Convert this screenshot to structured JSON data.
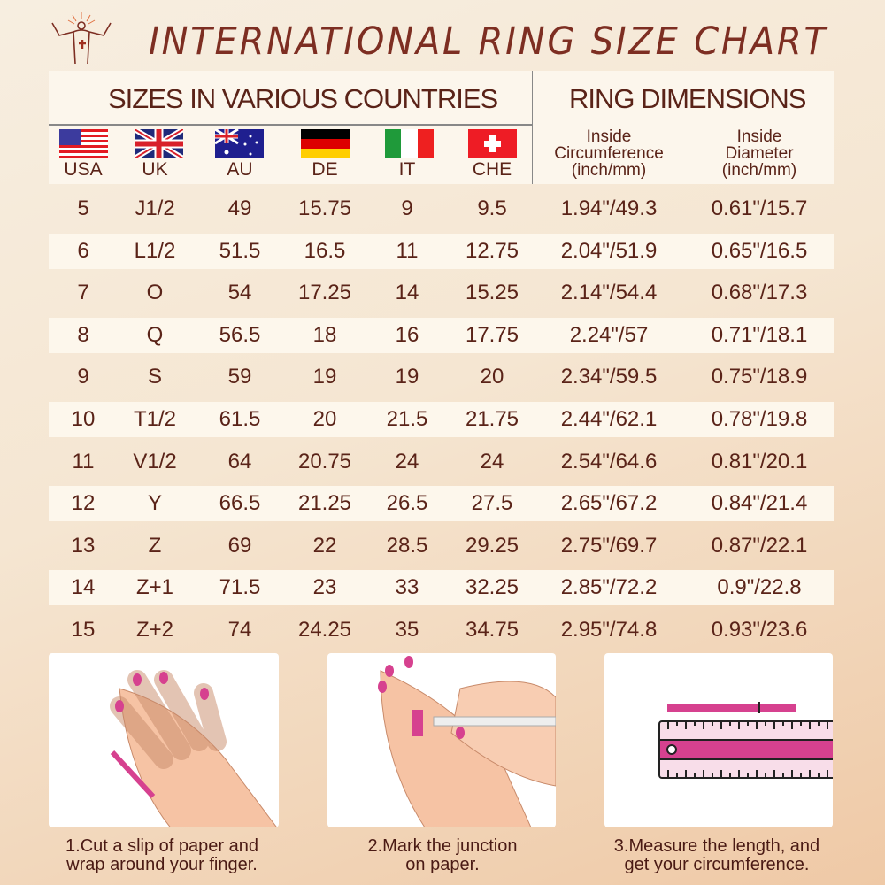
{
  "title": "INTERNATIONAL RING SIZE CHART",
  "header": {
    "left": "SIZES IN VARIOUS COUNTRIES",
    "right": "RING DIMENSIONS",
    "countries": [
      "USA",
      "UK",
      "AU",
      "DE",
      "IT",
      "CHE"
    ],
    "dims": [
      [
        "Inside",
        "Circumference",
        "(inch/mm)"
      ],
      [
        "Inside",
        "Diameter",
        "(inch/mm)"
      ]
    ]
  },
  "rows": [
    [
      "5",
      "J1/2",
      "49",
      "15.75",
      "9",
      "9.5",
      "1.94\"/49.3",
      "0.61\"/15.7"
    ],
    [
      "6",
      "L1/2",
      "51.5",
      "16.5",
      "11",
      "12.75",
      "2.04\"/51.9",
      "0.65\"/16.5"
    ],
    [
      "7",
      "O",
      "54",
      "17.25",
      "14",
      "15.25",
      "2.14\"/54.4",
      "0.68\"/17.3"
    ],
    [
      "8",
      "Q",
      "56.5",
      "18",
      "16",
      "17.75",
      "2.24\"/57",
      "0.71\"/18.1"
    ],
    [
      "9",
      "S",
      "59",
      "19",
      "19",
      "20",
      "2.34\"/59.5",
      "0.75\"/18.9"
    ],
    [
      "10",
      "T1/2",
      "61.5",
      "20",
      "21.5",
      "21.75",
      "2.44\"/62.1",
      "0.78\"/19.8"
    ],
    [
      "11",
      "V1/2",
      "64",
      "20.75",
      "24",
      "24",
      "2.54\"/64.6",
      "0.81\"/20.1"
    ],
    [
      "12",
      "Y",
      "66.5",
      "21.25",
      "26.5",
      "27.5",
      "2.65\"/67.2",
      "0.84\"/21.4"
    ],
    [
      "13",
      "Z",
      "69",
      "22",
      "28.5",
      "29.25",
      "2.75\"/69.7",
      "0.87\"/22.1"
    ],
    [
      "14",
      "Z+1",
      "71.5",
      "23",
      "33",
      "32.25",
      "2.85\"/72.2",
      "0.9\"/22.8"
    ],
    [
      "15",
      "Z+2",
      "74",
      "24.25",
      "35",
      "34.75",
      "2.95\"/74.8",
      "0.93\"/23.6"
    ]
  ],
  "steps": [
    [
      "1.Cut a slip of paper and",
      "wrap around your finger."
    ],
    [
      "2.Mark the junction",
      "on paper."
    ],
    [
      "3.Measure the length, and",
      "get your circumference."
    ]
  ],
  "colors": {
    "title": "#7d2e22",
    "text": "#5a2318",
    "accent": "#d6418f"
  }
}
